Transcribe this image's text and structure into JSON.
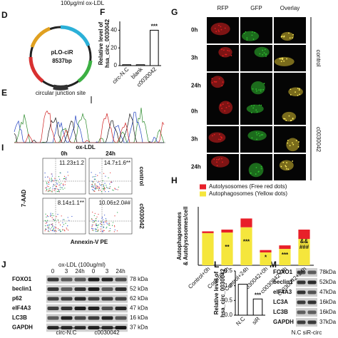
{
  "header": "100μg/ml ox-LDL",
  "panel_labels": [
    "D",
    "E",
    "F",
    "G",
    "H",
    "I",
    "J",
    "L",
    "M"
  ],
  "plasmid": {
    "name": "pLO-ciR",
    "size": "8537bp"
  },
  "junction": {
    "title": "circular junction site"
  },
  "imaging": {
    "columns": [
      "RFP",
      "GFP",
      "Overlay"
    ],
    "rows": [
      "0h",
      "3h",
      "24h",
      "0h",
      "3h",
      "24h"
    ],
    "groups": [
      "control",
      "c0030042"
    ]
  },
  "flow": {
    "title": "ox-LDL",
    "times": [
      "0h",
      "24h"
    ],
    "groups": [
      "control",
      "c0030042"
    ],
    "quadrant_labels": [
      [
        "11.23±1.2",
        "14.7±1.6**"
      ],
      [
        "8.14±1.1**",
        "10.06±2.0##"
      ]
    ],
    "ylabel": "7-AAD",
    "xlabel": "Annexin-V  PE"
  },
  "blot_j": {
    "title": "ox-LDL (100ug/ml)",
    "lanes": [
      "0",
      "3",
      "24h",
      "0",
      "3",
      "24h"
    ],
    "groups": [
      "circ-N.C",
      "c0030042"
    ],
    "proteins": [
      "FOXO1",
      "beclin1",
      "p62",
      "eIF4A3",
      "LC3B",
      "GAPDH"
    ],
    "sizes": [
      "78 kDa",
      "52 kDa",
      "62 kDa",
      "47 kDa",
      "16 kDa",
      "37 kDa"
    ]
  },
  "blot_m": {
    "lanes": "N.C siR-circ",
    "proteins": [
      "FOXO1",
      "beclin1",
      "eIF4A3",
      "LC3A",
      "LC3B",
      "GAPDH"
    ],
    "sizes": [
      "78kDa",
      "52kDa",
      "47kDa",
      "16kDa",
      "16kDa",
      "37kDa"
    ]
  },
  "chart_data": [
    {
      "type": "bar",
      "ylabel": [
        "Relative level of",
        "hsa_circ_0030042"
      ],
      "categories": [
        "circ-N.C",
        "blank",
        "c0030042"
      ],
      "values": [
        1,
        1,
        40
      ],
      "color": "#ffffff",
      "ylim": [
        0,
        50
      ],
      "yticks": [
        0,
        20,
        40
      ],
      "annotations": [
        {
          "category": "c0030042",
          "text": "***"
        }
      ]
    },
    {
      "type": "stacked_bar",
      "ylabel": [
        "Autophagosomes",
        "& Autolysosomes/cell"
      ],
      "categories": [
        "Control+0h",
        "Control+3h",
        "Control+24h",
        "c0030042+0h",
        "c0030042+3h",
        "c0030042+24h"
      ],
      "series": [
        {
          "name": "Autolysosomes (Free red dots)",
          "color": "#e8202a",
          "values": [
            0.3,
            0.5,
            1.5,
            0.4,
            0.6,
            1.6
          ]
        },
        {
          "name": "Autophagosomes (Yellow dots)",
          "color": "#f5e63c",
          "values": [
            5.5,
            5.6,
            6.5,
            2.2,
            2.8,
            4.5
          ]
        }
      ],
      "ylim": [
        0,
        10
      ],
      "annotations": [
        {
          "category": "Control+3h",
          "text": "**"
        },
        {
          "category": "Control+24h",
          "text": "***"
        },
        {
          "category": "c0030042+0h",
          "text": "*"
        },
        {
          "category": "c0030042+3h",
          "text": "***"
        },
        {
          "category": "c0030042+24h",
          "text": "###"
        },
        {
          "category": "c0030042+24h",
          "text": "&&"
        }
      ]
    },
    {
      "type": "bar",
      "ylabel": [
        "Relative level of",
        "hsa_circ_0030042"
      ],
      "categories": [
        "N.C",
        "siR"
      ],
      "values": [
        1.05,
        0.55
      ],
      "color": "#ffffff",
      "ylim": [
        0,
        1.5
      ],
      "yticks": [
        {
          "value": 0,
          "label": "0.0"
        },
        {
          "value": 0.5,
          "label": "0.5"
        },
        {
          "value": 1,
          "label": "1.0"
        },
        {
          "value": 1.5,
          "label": "1.5"
        }
      ],
      "annotations": [
        {
          "category": "siR",
          "text": "***"
        }
      ]
    }
  ]
}
